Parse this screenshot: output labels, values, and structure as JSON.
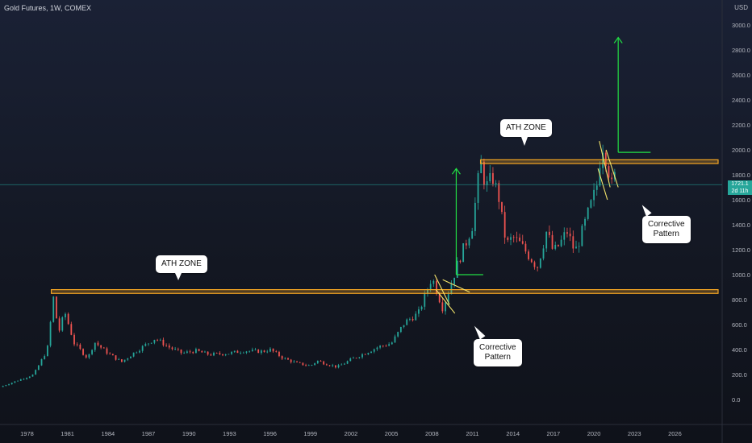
{
  "header": {
    "symbol_title": "Gold Futures, 1W, COMEX",
    "currency": "USD"
  },
  "price_tag": {
    "price": "1721.1",
    "countdown": "2d 11h"
  },
  "annotations": {
    "ath_zone_1": "ATH ZONE",
    "ath_zone_2": "ATH ZONE",
    "corrective_1_line1": "Corrective",
    "corrective_1_line2": "Pattern",
    "corrective_2_line1": "Corrective",
    "corrective_2_line2": "Pattern"
  },
  "colors": {
    "background": "#131722",
    "zone": "#f5a623",
    "arrow": "#22dd44",
    "wedge": "#f5e66b",
    "up": "#26a69a",
    "down": "#ef5350",
    "current_price_line": "#26a69a"
  },
  "chart_data": {
    "type": "candlestick",
    "title": "Gold Futures, 1W, COMEX",
    "ylabel": "USD",
    "y_ticks": [
      "0.0",
      "200.0",
      "400.0",
      "600.0",
      "800.0",
      "1000.0",
      "1200.0",
      "1400.0",
      "1600.0",
      "1800.0",
      "2000.0",
      "2200.0",
      "2400.0",
      "2600.0",
      "2800.0",
      "3000.0"
    ],
    "y_tick_values": [
      0,
      200,
      400,
      600,
      800,
      1000,
      1200,
      1400,
      1600,
      1800,
      2000,
      2200,
      2400,
      2600,
      2800,
      3000
    ],
    "x_ticks": [
      "1978",
      "1981",
      "1984",
      "1987",
      "1990",
      "1993",
      "1996",
      "1999",
      "2002",
      "2005",
      "2008",
      "2011",
      "2014",
      "2017",
      "2020",
      "2023",
      "2026"
    ],
    "x_tick_values": [
      1978,
      1981,
      1984,
      1987,
      1990,
      1993,
      1996,
      1999,
      2002,
      2005,
      2008,
      2011,
      2014,
      2017,
      2020,
      2023,
      2026
    ],
    "xlim": [
      1976,
      2029.5
    ],
    "ylim": [
      -200,
      3200
    ],
    "current_price": 1721.1,
    "price_path": [
      [
        1976,
        100
      ],
      [
        1977,
        140
      ],
      [
        1978.5,
        200
      ],
      [
        1979.5,
        400
      ],
      [
        1980,
        850
      ],
      [
        1980.3,
        520
      ],
      [
        1980.8,
        700
      ],
      [
        1981.5,
        450
      ],
      [
        1982.5,
        330
      ],
      [
        1983,
        460
      ],
      [
        1984,
        370
      ],
      [
        1985,
        300
      ],
      [
        1986,
        380
      ],
      [
        1987.5,
        490
      ],
      [
        1988.5,
        420
      ],
      [
        1989.5,
        370
      ],
      [
        1990.5,
        390
      ],
      [
        1991.5,
        360
      ],
      [
        1993,
        370
      ],
      [
        1994,
        390
      ],
      [
        1995.5,
        385
      ],
      [
        1996,
        400
      ],
      [
        1997,
        330
      ],
      [
        1998,
        290
      ],
      [
        1999,
        270
      ],
      [
        1999.5,
        310
      ],
      [
        2000.5,
        275
      ],
      [
        2001,
        260
      ],
      [
        2002,
        320
      ],
      [
        2003,
        370
      ],
      [
        2004,
        420
      ],
      [
        2005,
        450
      ],
      [
        2006,
        620
      ],
      [
        2007,
        690
      ],
      [
        2008,
        980
      ],
      [
        2008.8,
        730
      ],
      [
        2009.5,
        950
      ],
      [
        2010,
        1120
      ],
      [
        2010.5,
        1250
      ],
      [
        2011,
        1400
      ],
      [
        2011.6,
        1900
      ],
      [
        2012,
        1700
      ],
      [
        2012.5,
        1780
      ],
      [
        2013,
        1600
      ],
      [
        2013.3,
        1350
      ],
      [
        2013.6,
        1250
      ],
      [
        2014,
        1300
      ],
      [
        2014.5,
        1250
      ],
      [
        2015,
        1180
      ],
      [
        2015.8,
        1060
      ],
      [
        2016.5,
        1350
      ],
      [
        2017,
        1180
      ],
      [
        2017.5,
        1250
      ],
      [
        2018,
        1350
      ],
      [
        2018.6,
        1180
      ],
      [
        2019,
        1300
      ],
      [
        2019.6,
        1500
      ],
      [
        2020.2,
        1700
      ],
      [
        2020.6,
        2060
      ],
      [
        2021,
        1900
      ],
      [
        2021.3,
        1700
      ],
      [
        2021.5,
        1800
      ],
      [
        2021.7,
        1721
      ]
    ],
    "ath_zones": [
      {
        "label": "ATH ZONE",
        "price_range": [
          850,
          880
        ],
        "x_range": [
          1979.8,
          2029.2
        ]
      },
      {
        "label": "ATH ZONE",
        "price_range": [
          1890,
          1920
        ],
        "x_range": [
          2011.6,
          2029.2
        ]
      }
    ],
    "target_arrows": [
      {
        "x": 2009.8,
        "from": 1000,
        "to": 1850,
        "base_from_x": 2009.8,
        "base_to_x": 2011.8
      },
      {
        "x": 2021.8,
        "from": 1980,
        "to": 2900,
        "base_from_x": 2021.8,
        "base_to_x": 2024.2
      }
    ],
    "wedges": [
      {
        "lines": [
          [
            [
              2008.2,
              1000
            ],
            [
              2009.3,
              760
            ]
          ],
          [
            [
              2008.3,
              880
            ],
            [
              2009.7,
              690
            ]
          ],
          [
            [
              2008.8,
              960
            ],
            [
              2010.8,
              860
            ]
          ]
        ]
      },
      {
        "lines": [
          [
            [
              2020.4,
              2070
            ],
            [
              2021.2,
              1700
            ]
          ],
          [
            [
              2020.3,
              1850
            ],
            [
              2021.0,
              1600
            ]
          ],
          [
            [
              2020.9,
              2000
            ],
            [
              2021.8,
              1700
            ]
          ]
        ]
      }
    ]
  }
}
